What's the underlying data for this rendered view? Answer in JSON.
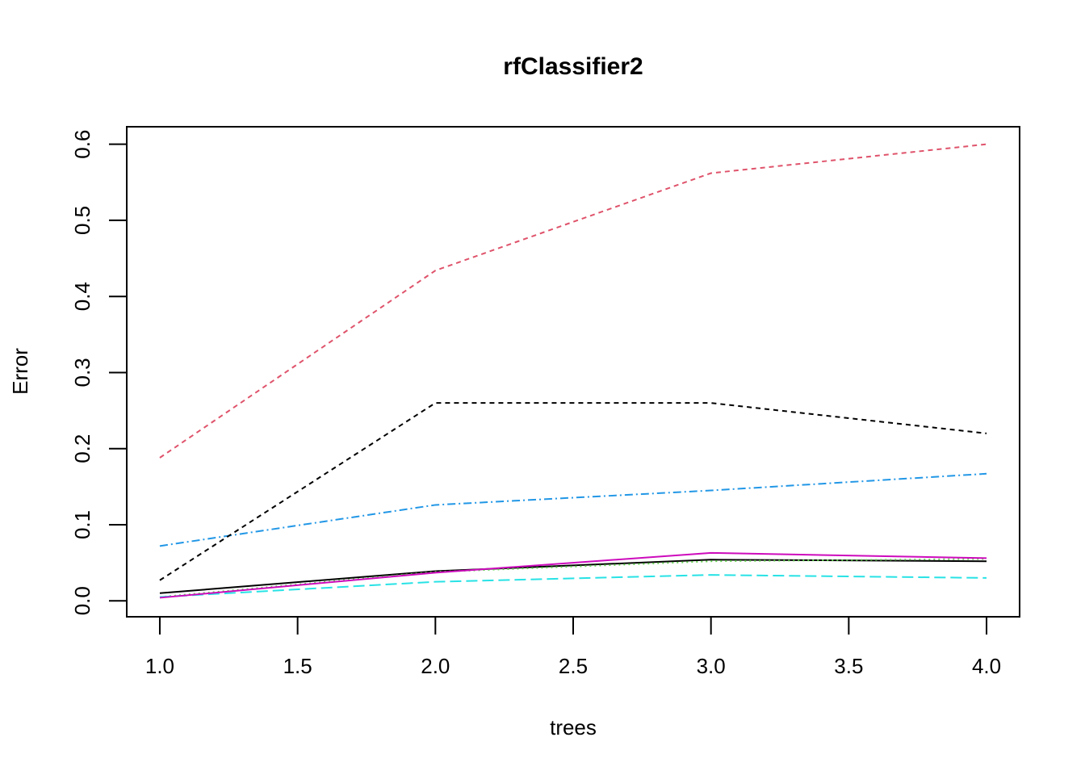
{
  "chart_data": {
    "type": "line",
    "title": "rfClassifier2",
    "xlabel": "trees",
    "ylabel": "Error",
    "xlim": [
      0.88,
      4.12
    ],
    "ylim": [
      -0.021,
      0.623
    ],
    "x_ticks": [
      1.0,
      1.5,
      2.0,
      2.5,
      3.0,
      3.5,
      4.0
    ],
    "x_tick_labels": [
      "1.0",
      "1.5",
      "2.0",
      "2.5",
      "3.0",
      "3.5",
      "4.0"
    ],
    "y_ticks": [
      0.0,
      0.1,
      0.2,
      0.3,
      0.4,
      0.5,
      0.6
    ],
    "y_tick_labels": [
      "0.0",
      "0.1",
      "0.2",
      "0.3",
      "0.4",
      "0.5",
      "0.6"
    ],
    "grid": false,
    "legend": "none",
    "x": [
      1,
      2,
      3,
      4
    ],
    "series": [
      {
        "color": "#000000",
        "dash": "",
        "values": [
          0.01,
          0.039,
          0.054,
          0.052
        ]
      },
      {
        "color": "#DF536B",
        "dash": "6,5",
        "values": [
          0.188,
          0.434,
          0.562,
          0.6
        ]
      },
      {
        "color": "#61D04F",
        "dash": "2,4",
        "values": [
          0.005,
          0.038,
          0.052,
          0.055
        ]
      },
      {
        "color": "#2297E6",
        "dash": "10,4,2,4",
        "values": [
          0.072,
          0.126,
          0.145,
          0.167
        ]
      },
      {
        "color": "#28E2E5",
        "dash": "14,6",
        "values": [
          0.005,
          0.025,
          0.034,
          0.03
        ]
      },
      {
        "color": "#CD0BBC",
        "dash": "",
        "values": [
          0.004,
          0.037,
          0.063,
          0.056
        ]
      },
      {
        "color": "#000000",
        "dash": "6,5",
        "values": [
          0.027,
          0.26,
          0.26,
          0.22
        ]
      }
    ]
  }
}
